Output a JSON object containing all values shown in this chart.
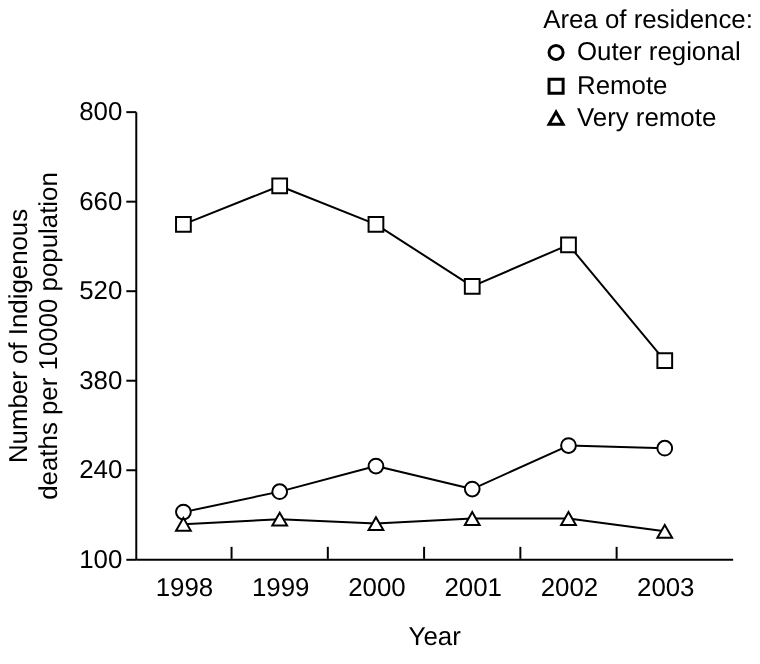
{
  "chart_data": {
    "type": "line",
    "xlabel": "Year",
    "ylabel": "Number of Indigenous deaths per 10000 population",
    "legend_title": "Area of residence:",
    "categories": [
      "1998",
      "1999",
      "2000",
      "2001",
      "2002",
      "2003"
    ],
    "series": [
      {
        "name": "Outer regional",
        "color": "#000000",
        "marker": "circle",
        "values": [
          173,
          205,
          245,
          209,
          277,
          273
        ]
      },
      {
        "name": "Remote",
        "color": "#000000",
        "marker": "square",
        "values": [
          623,
          683,
          623,
          526,
          591,
          410
        ]
      },
      {
        "name": "Very remote",
        "color": "#000000",
        "marker": "triangle",
        "values": [
          154,
          162,
          155,
          163,
          163,
          143
        ]
      }
    ],
    "ylim": [
      100,
      800
    ],
    "yticks": [
      100,
      240,
      380,
      520,
      660,
      800
    ],
    "grid": false,
    "legend": "top right",
    "line_style": "solid"
  }
}
